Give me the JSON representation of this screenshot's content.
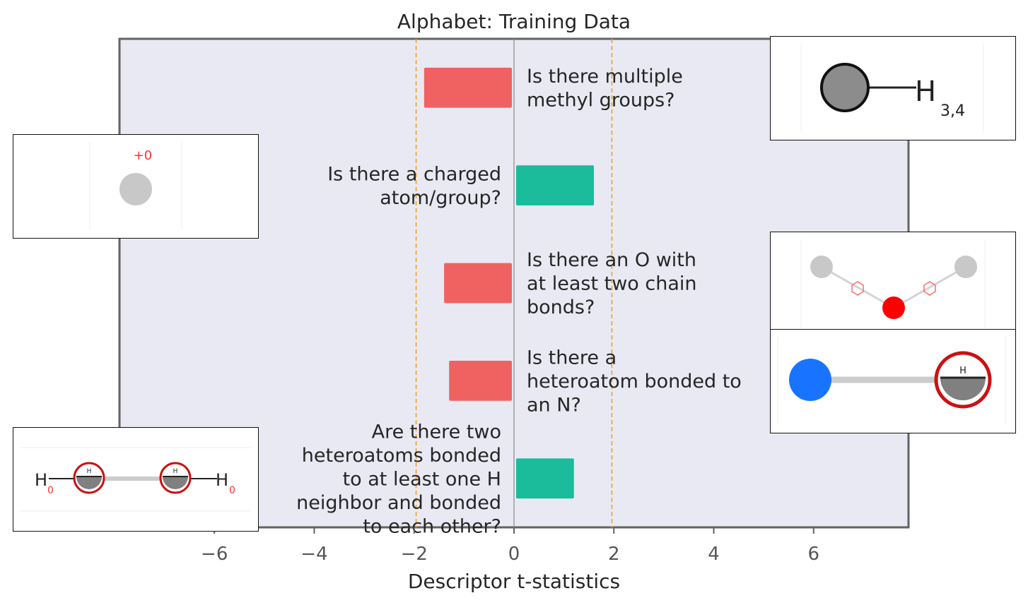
{
  "chart_data": {
    "type": "bar",
    "orientation": "horizontal",
    "title": "Alphabet: Training Data",
    "xlabel": "Descriptor t-statistics",
    "ylabel": "",
    "xlim": [
      -7.9,
      7.9
    ],
    "xticks": [
      -6,
      -4,
      -2,
      0,
      2,
      4,
      6
    ],
    "xtick_labels": [
      "−6",
      "−4",
      "−2",
      "0",
      "2",
      "4",
      "6"
    ],
    "threshold_lines": [
      -1.96,
      1.96
    ],
    "grid": false,
    "colors": {
      "negative": "#f06262",
      "positive": "#1abc9c",
      "threshold": "#f0a030",
      "background": "#e8e9f2",
      "frame": "#636363"
    },
    "bars": [
      {
        "label_lines": [
          "Is there multiple",
          "methyl groups?"
        ],
        "value": -1.8
      },
      {
        "label_lines": [
          "Is there a charged",
          "atom/group?"
        ],
        "value": 1.6
      },
      {
        "label_lines": [
          "Is there an O with",
          "at least two chain",
          "bonds?"
        ],
        "value": -1.4
      },
      {
        "label_lines": [
          "Is there a",
          "heteroatom bonded to",
          "an N?"
        ],
        "value": -1.3
      },
      {
        "label_lines": [
          "Are there two",
          "heteroatoms bonded",
          "to at least one H",
          "neighbor and bonded",
          "to each other?"
        ],
        "value": 1.2
      }
    ]
  },
  "insets": {
    "methyl": {
      "atom_label": "H",
      "subscript": "3,4"
    },
    "charged": {
      "charge_label": "+0"
    },
    "hydroxyl": {
      "atom_label": "H",
      "subscript": "0",
      "ring_label": "H"
    },
    "nitrogen": {
      "ring_label": "H"
    }
  }
}
